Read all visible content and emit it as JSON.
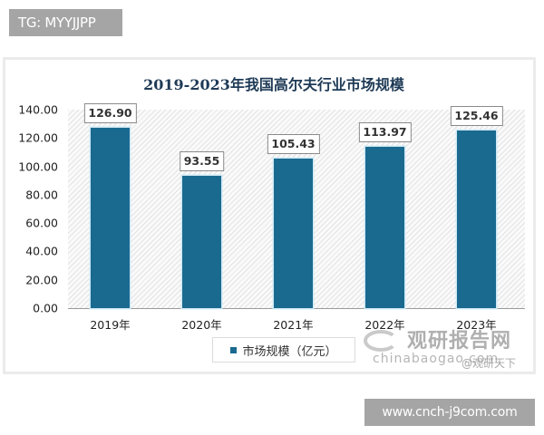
{
  "overlay": {
    "top_tag": "TG: MYYJJPP",
    "bottom_url": "www.cnch-j9com.com"
  },
  "watermark": {
    "brand_cn": "观研报告网",
    "brand_en": "chinabaogao.com",
    "weibo": "@观研天下"
  },
  "chart_data": {
    "type": "bar",
    "title": "2019-2023年我国高尔夫行业市场规模",
    "categories": [
      "2019年",
      "2020年",
      "2021年",
      "2022年",
      "2023年"
    ],
    "series": [
      {
        "name": "市场规模（亿元）",
        "values": [
          126.9,
          93.55,
          105.43,
          113.97,
          125.46
        ],
        "color": "#1a6a90"
      }
    ],
    "value_labels": [
      "126.90",
      "93.55",
      "105.43",
      "113.97",
      "125.46"
    ],
    "xlabel": "",
    "ylabel": "",
    "ylim": [
      0,
      140
    ],
    "yticks": [
      "0.00",
      "20.00",
      "40.00",
      "60.00",
      "80.00",
      "100.00",
      "120.00",
      "140.00"
    ],
    "grid": false,
    "legend_position": "bottom",
    "plot_background": "diagonal-hatch"
  }
}
